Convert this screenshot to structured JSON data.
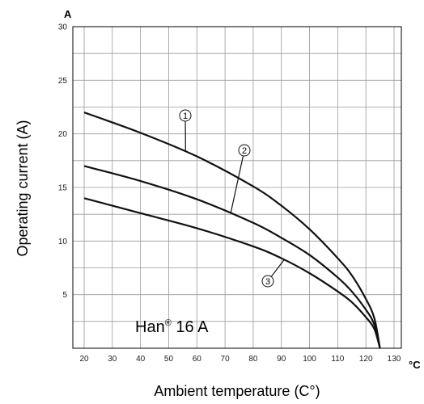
{
  "chart_data": {
    "type": "line",
    "title": "",
    "xlabel": "Ambient temperature (C°)",
    "ylabel": "Operating current (A)",
    "x_unit": "°C",
    "y_unit": "A",
    "xlim": [
      20,
      130
    ],
    "ylim": [
      0,
      30
    ],
    "x_ticks": [
      "20",
      "30",
      "40",
      "50",
      "60",
      "70",
      "80",
      "90",
      "100",
      "110",
      "120",
      "130"
    ],
    "y_ticks": [
      "5",
      "10",
      "15",
      "20",
      "25",
      "30"
    ],
    "grid": true,
    "annotation": {
      "main": "Han",
      "sup": "®",
      "rest": " 16 A"
    },
    "series": [
      {
        "name": "1",
        "x": [
          20,
          40,
          60,
          80,
          90,
          100,
          110,
          115,
          120,
          123,
          125
        ],
        "y": [
          22,
          20.1,
          17.9,
          15.1,
          13.3,
          11.1,
          8.4,
          6.8,
          4.6,
          2.8,
          0
        ]
      },
      {
        "name": "2",
        "x": [
          20,
          40,
          60,
          80,
          90,
          100,
          110,
          115,
          120,
          123,
          125
        ],
        "y": [
          17,
          15.6,
          13.9,
          11.7,
          10.3,
          8.7,
          6.6,
          5.3,
          3.6,
          2.2,
          0
        ]
      },
      {
        "name": "3",
        "x": [
          20,
          40,
          60,
          80,
          90,
          100,
          110,
          115,
          120,
          123,
          125
        ],
        "y": [
          14,
          12.6,
          11.2,
          9.5,
          8.4,
          7.0,
          5.3,
          4.3,
          2.9,
          1.8,
          0
        ]
      }
    ]
  }
}
